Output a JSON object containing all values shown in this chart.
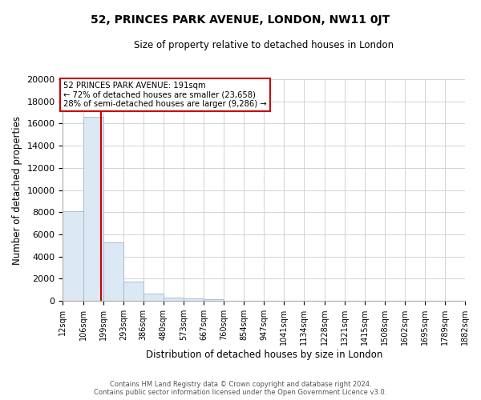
{
  "title": "52, PRINCES PARK AVENUE, LONDON, NW11 0JT",
  "subtitle": "Size of property relative to detached houses in London",
  "xlabel": "Distribution of detached houses by size in London",
  "ylabel": "Number of detached properties",
  "bin_labels": [
    "12sqm",
    "106sqm",
    "199sqm",
    "293sqm",
    "386sqm",
    "480sqm",
    "573sqm",
    "667sqm",
    "760sqm",
    "854sqm",
    "947sqm",
    "1041sqm",
    "1134sqm",
    "1228sqm",
    "1321sqm",
    "1415sqm",
    "1508sqm",
    "1602sqm",
    "1695sqm",
    "1789sqm",
    "1882sqm"
  ],
  "bin_edges": [
    12,
    106,
    199,
    293,
    386,
    480,
    573,
    667,
    760,
    854,
    947,
    1041,
    1134,
    1228,
    1321,
    1415,
    1508,
    1602,
    1695,
    1789,
    1882
  ],
  "bar_heights": [
    8100,
    16600,
    5300,
    1750,
    700,
    280,
    200,
    130,
    0,
    0,
    0,
    0,
    0,
    0,
    0,
    0,
    0,
    0,
    0,
    0
  ],
  "bar_color": "#dce9f5",
  "bar_edgecolor": "#a0b8d0",
  "property_value": 191,
  "property_label": "52 PRINCES PARK AVENUE: 191sqm",
  "annotation_line1": "← 72% of detached houses are smaller (23,658)",
  "annotation_line2": "28% of semi-detached houses are larger (9,286) →",
  "redline_color": "#cc0000",
  "box_edgecolor": "#cc0000",
  "ylim": [
    0,
    20000
  ],
  "yticks": [
    0,
    2000,
    4000,
    6000,
    8000,
    10000,
    12000,
    14000,
    16000,
    18000,
    20000
  ],
  "footer_line1": "Contains HM Land Registry data © Crown copyright and database right 2024.",
  "footer_line2": "Contains public sector information licensed under the Open Government Licence v3.0.",
  "background_color": "#ffffff",
  "plot_background": "#ffffff",
  "grid_color": "#cccccc"
}
